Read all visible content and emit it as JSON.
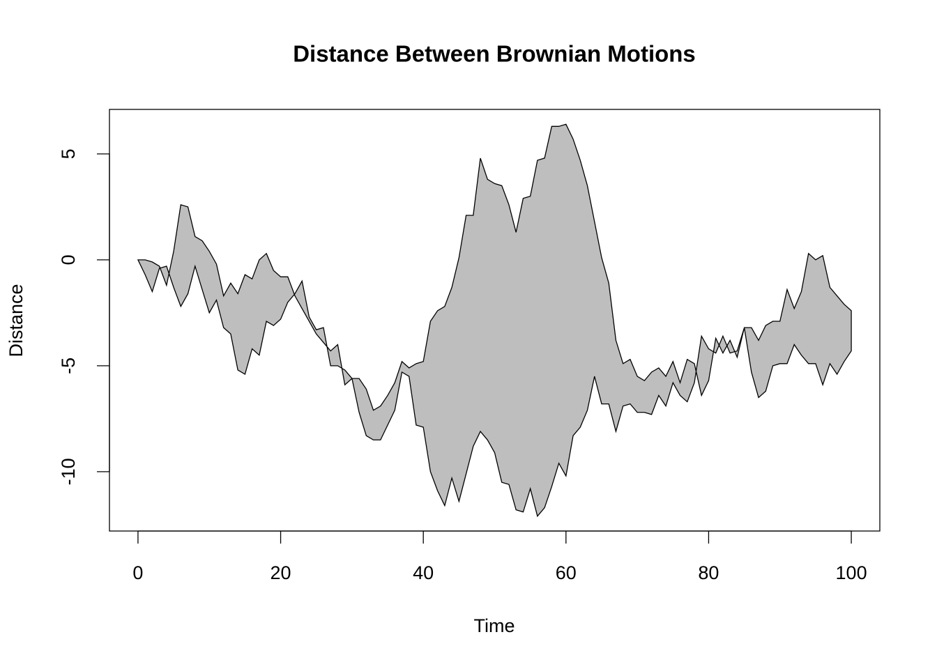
{
  "chart_data": {
    "type": "polygon",
    "title": "Distance Between Brownian Motions",
    "xlabel": "Time",
    "ylabel": "Distance",
    "fill": "#bebebe",
    "stroke": "#000000",
    "x": [
      0,
      1,
      2,
      3,
      4,
      5,
      6,
      7,
      8,
      9,
      10,
      11,
      12,
      13,
      14,
      15,
      16,
      17,
      18,
      19,
      20,
      21,
      22,
      23,
      24,
      25,
      26,
      27,
      28,
      29,
      30,
      31,
      32,
      33,
      34,
      35,
      36,
      37,
      38,
      39,
      40,
      41,
      42,
      43,
      44,
      45,
      46,
      47,
      48,
      49,
      50,
      51,
      52,
      53,
      54,
      55,
      56,
      57,
      58,
      59,
      60,
      61,
      62,
      63,
      64,
      65,
      66,
      67,
      68,
      69,
      70,
      71,
      72,
      73,
      74,
      75,
      76,
      77,
      78,
      79,
      80,
      81,
      82,
      83,
      84,
      85,
      86,
      87,
      88,
      89,
      90,
      91,
      92,
      93,
      94,
      95,
      96,
      97,
      98,
      99,
      100
    ],
    "series": [
      {
        "values": [
          0,
          0,
          -0.1,
          -0.3,
          -1.2,
          0.4,
          2.6,
          2.5,
          1.1,
          0.9,
          0.4,
          -0.2,
          -1.7,
          -1.1,
          -1.6,
          -0.7,
          -0.9,
          0.0,
          0.3,
          -0.5,
          -0.8,
          -0.8,
          -1.7,
          -2.3,
          -2.9,
          -3.5,
          -3.9,
          -4.3,
          -4.0,
          -5.9,
          -5.6,
          -5.6,
          -6.1,
          -7.1,
          -6.9,
          -6.4,
          -5.8,
          -4.8,
          -5.1,
          -4.9,
          -4.8,
          -2.9,
          -2.4,
          -2.2,
          -1.3,
          0.1,
          2.1,
          2.1,
          4.8,
          3.8,
          3.6,
          3.5,
          2.6,
          1.3,
          2.9,
          3.0,
          4.7,
          4.8,
          6.3,
          6.3,
          6.4,
          5.7,
          4.7,
          3.5,
          1.8,
          0.1,
          -1.1,
          -3.8,
          -4.9,
          -4.7,
          -5.5,
          -5.7,
          -5.3,
          -5.1,
          -5.5,
          -4.8,
          -5.8,
          -4.7,
          -4.9,
          -6.4,
          -5.7,
          -3.7,
          -4.4,
          -3.8,
          -4.6,
          -3.2,
          -3.2,
          -3.8,
          -3.1,
          -2.9,
          -2.9,
          -1.4,
          -2.3,
          -1.5,
          0.3,
          0.0,
          0.2,
          -1.3,
          -1.7,
          -2.1,
          -2.4
        ]
      },
      {
        "values": [
          0,
          -0.7,
          -1.5,
          -0.4,
          -0.3,
          -1.3,
          -2.2,
          -1.6,
          -0.3,
          -1.4,
          -2.5,
          -1.9,
          -3.2,
          -3.5,
          -5.2,
          -5.4,
          -4.2,
          -4.5,
          -2.9,
          -3.1,
          -2.8,
          -2.0,
          -1.6,
          -1.0,
          -2.7,
          -3.3,
          -3.2,
          -5.0,
          -5.0,
          -5.2,
          -5.6,
          -7.2,
          -8.3,
          -8.5,
          -8.5,
          -7.8,
          -7.1,
          -5.3,
          -5.5,
          -7.8,
          -7.9,
          -10.0,
          -10.9,
          -11.6,
          -10.3,
          -11.4,
          -10.1,
          -8.8,
          -8.1,
          -8.5,
          -9.1,
          -10.5,
          -10.6,
          -11.8,
          -11.9,
          -10.8,
          -12.1,
          -11.7,
          -10.7,
          -9.6,
          -10.2,
          -8.3,
          -7.9,
          -7.1,
          -5.5,
          -6.8,
          -6.8,
          -8.1,
          -6.9,
          -6.8,
          -7.2,
          -7.2,
          -7.3,
          -6.4,
          -6.9,
          -5.8,
          -6.4,
          -6.7,
          -5.8,
          -3.6,
          -4.2,
          -4.4,
          -3.6,
          -4.4,
          -4.3,
          -3.2,
          -5.3,
          -6.5,
          -6.2,
          -5.0,
          -4.9,
          -4.9,
          -4.0,
          -4.5,
          -4.9,
          -4.9,
          -5.9,
          -4.9,
          -5.4,
          -4.8,
          -4.3
        ]
      }
    ],
    "xlim": [
      -4,
      104
    ],
    "ylim": [
      -12.8,
      7.1
    ],
    "xticks": [
      0,
      20,
      40,
      60,
      80,
      100
    ],
    "yticks": [
      -10,
      -5,
      0,
      5
    ]
  }
}
